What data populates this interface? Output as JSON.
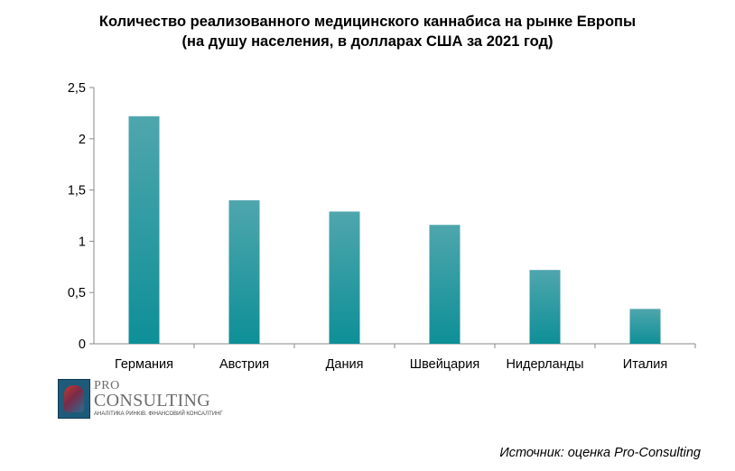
{
  "chart_data": {
    "type": "bar",
    "title": "Количество реализованного медицинского каннабиса на рынке Европы",
    "subtitle": "(на душу  населения, в долларах США за 2021 год)",
    "categories": [
      "Германия",
      "Австрия",
      "Дания",
      "Швейцария",
      "Нидерланды",
      "Италия"
    ],
    "values": [
      2.22,
      1.4,
      1.29,
      1.16,
      0.72,
      0.34
    ],
    "xlabel": "",
    "ylabel": "",
    "ylim": [
      0,
      2.5
    ],
    "yticks": [
      "0",
      "0,5",
      "1",
      "1,5",
      "2",
      "2,5"
    ],
    "grid": false,
    "legend": "none",
    "bar_color_top": "#4fa6ad",
    "bar_color_bottom": "#0e8f97"
  },
  "logo": {
    "pro": "PRO",
    "consulting": "CONSULTING",
    "tagline": "АНАЛІТИКА РИНКІВ. ФІНАНСОВИЙ КОНСАЛТИНГ"
  },
  "source": "Источник: оценка Pro-Consulting"
}
